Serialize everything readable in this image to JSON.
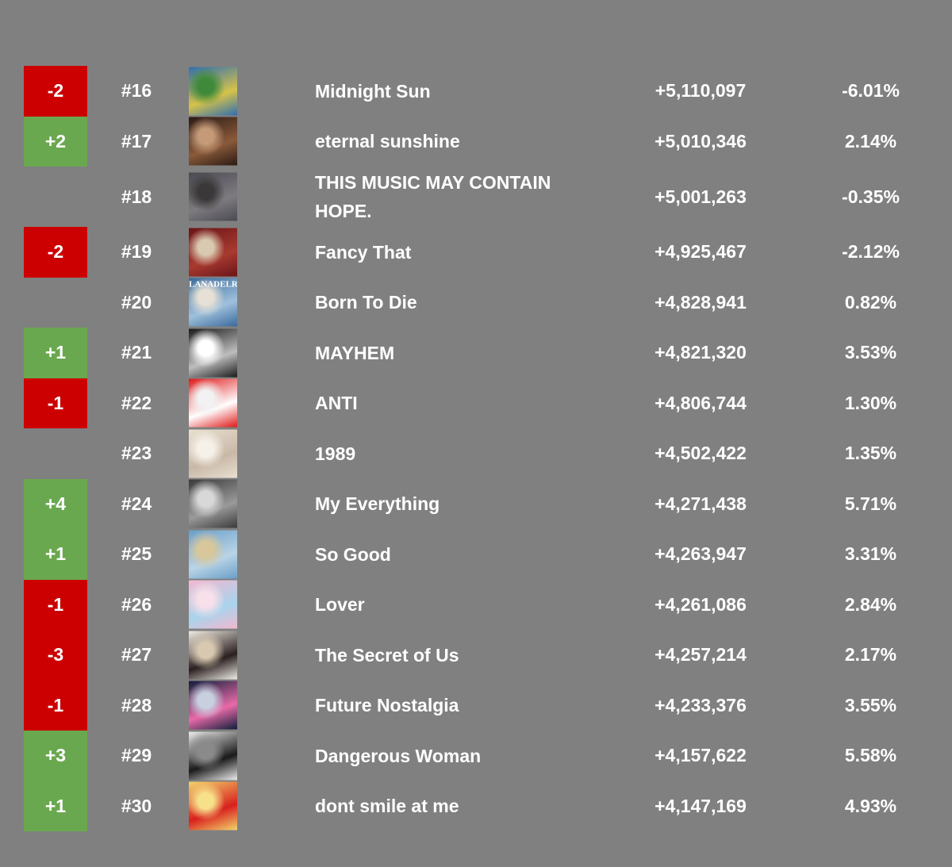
{
  "rows": [
    {
      "change": "-2",
      "status": "down",
      "rank": "#16",
      "title": "Midnight Sun",
      "streams": "+5,110,097",
      "pct": "-6.01%",
      "cover_icon": "album-cover-midnight-sun",
      "cover_colors": [
        "#2f6fb0",
        "#d6c24a",
        "#3f8a3a"
      ]
    },
    {
      "change": "+2",
      "status": "up",
      "rank": "#17",
      "title": "eternal sunshine",
      "streams": "+5,010,346",
      "pct": "2.14%",
      "cover_icon": "album-cover-eternal-sunshine",
      "cover_colors": [
        "#2a1a14",
        "#8a5a3a",
        "#c49a78"
      ]
    },
    {
      "change": "",
      "status": "none",
      "rank": "#18",
      "title": "THIS MUSIC MAY CONTAIN HOPE.",
      "streams": "+5,001,263",
      "pct": "-0.35%",
      "cover_icon": "album-cover-this-music-may-contain-hope",
      "cover_colors": [
        "#4a4a52",
        "#7e7a80",
        "#3a3838"
      ]
    },
    {
      "change": "-2",
      "status": "down",
      "rank": "#19",
      "title": "Fancy That",
      "streams": "+4,925,467",
      "pct": "-2.12%",
      "cover_icon": "album-cover-fancy-that",
      "cover_colors": [
        "#6a1418",
        "#a83a30",
        "#d9c9b0"
      ]
    },
    {
      "change": "",
      "status": "none",
      "rank": "#20",
      "title": "Born To Die",
      "streams": "+4,828,941",
      "pct": "0.82%",
      "cover_icon": "album-cover-born-to-die",
      "cover_colors": [
        "#3a6a9a",
        "#9ec0dc",
        "#e6e0d6"
      ],
      "cover_text": "LANADELREY"
    },
    {
      "change": "+1",
      "status": "up",
      "rank": "#21",
      "title": "MAYHEM",
      "streams": "+4,821,320",
      "pct": "3.53%",
      "cover_icon": "album-cover-mayhem",
      "cover_colors": [
        "#1a1a1a",
        "#bdbdbd",
        "#ffffff"
      ]
    },
    {
      "change": "-1",
      "status": "down",
      "rank": "#22",
      "title": "ANTI",
      "streams": "+4,806,744",
      "pct": "1.30%",
      "cover_icon": "album-cover-anti",
      "cover_colors": [
        "#e01818",
        "#ffffff",
        "#f2f2f2"
      ]
    },
    {
      "change": "",
      "status": "none",
      "rank": "#23",
      "title": "1989",
      "streams": "+4,502,422",
      "pct": "1.35%",
      "cover_icon": "album-cover-1989",
      "cover_colors": [
        "#e8e0d0",
        "#c9b8a8",
        "#f6f1e8"
      ]
    },
    {
      "change": "+4",
      "status": "up",
      "rank": "#24",
      "title": "My Everything",
      "streams": "+4,271,438",
      "pct": "5.71%",
      "cover_icon": "album-cover-my-everything",
      "cover_colors": [
        "#3a3a3a",
        "#9a9a9a",
        "#d8d8d8"
      ]
    },
    {
      "change": "+1",
      "status": "up",
      "rank": "#25",
      "title": "So Good",
      "streams": "+4,263,947",
      "pct": "3.31%",
      "cover_icon": "album-cover-so-good",
      "cover_colors": [
        "#6a9ec8",
        "#b9d4e6",
        "#d8c79a"
      ]
    },
    {
      "change": "-1",
      "status": "down",
      "rank": "#26",
      "title": "Lover",
      "streams": "+4,261,086",
      "pct": "2.84%",
      "cover_icon": "album-cover-lover",
      "cover_colors": [
        "#f2b8d0",
        "#a8d4ec",
        "#f7e0ea"
      ]
    },
    {
      "change": "-3",
      "status": "down",
      "rank": "#27",
      "title": "The Secret of Us",
      "streams": "+4,257,214",
      "pct": "2.17%",
      "cover_icon": "album-cover-the-secret-of-us",
      "cover_colors": [
        "#f0ece4",
        "#2a2020",
        "#d8c8b0"
      ]
    },
    {
      "change": "-1",
      "status": "down",
      "rank": "#28",
      "title": "Future Nostalgia",
      "streams": "+4,233,376",
      "pct": "3.55%",
      "cover_icon": "album-cover-future-nostalgia",
      "cover_colors": [
        "#0f1e3a",
        "#e86aa8",
        "#c8d0e0"
      ]
    },
    {
      "change": "+3",
      "status": "up",
      "rank": "#29",
      "title": "Dangerous Woman",
      "streams": "+4,157,622",
      "pct": "5.58%",
      "cover_icon": "album-cover-dangerous-woman",
      "cover_colors": [
        "#ececec",
        "#1a1a1a",
        "#8a8a8a"
      ]
    },
    {
      "change": "+1",
      "status": "up",
      "rank": "#30",
      "title": "dont smile at me",
      "streams": "+4,147,169",
      "pct": "4.93%",
      "cover_icon": "album-cover-dont-smile-at-me",
      "cover_colors": [
        "#f2d46a",
        "#d8201e",
        "#f7e08a"
      ]
    }
  ],
  "colors": {
    "background": "#808080",
    "up": "#6aa84f",
    "down": "#cc0000",
    "text": "#ffffff"
  }
}
